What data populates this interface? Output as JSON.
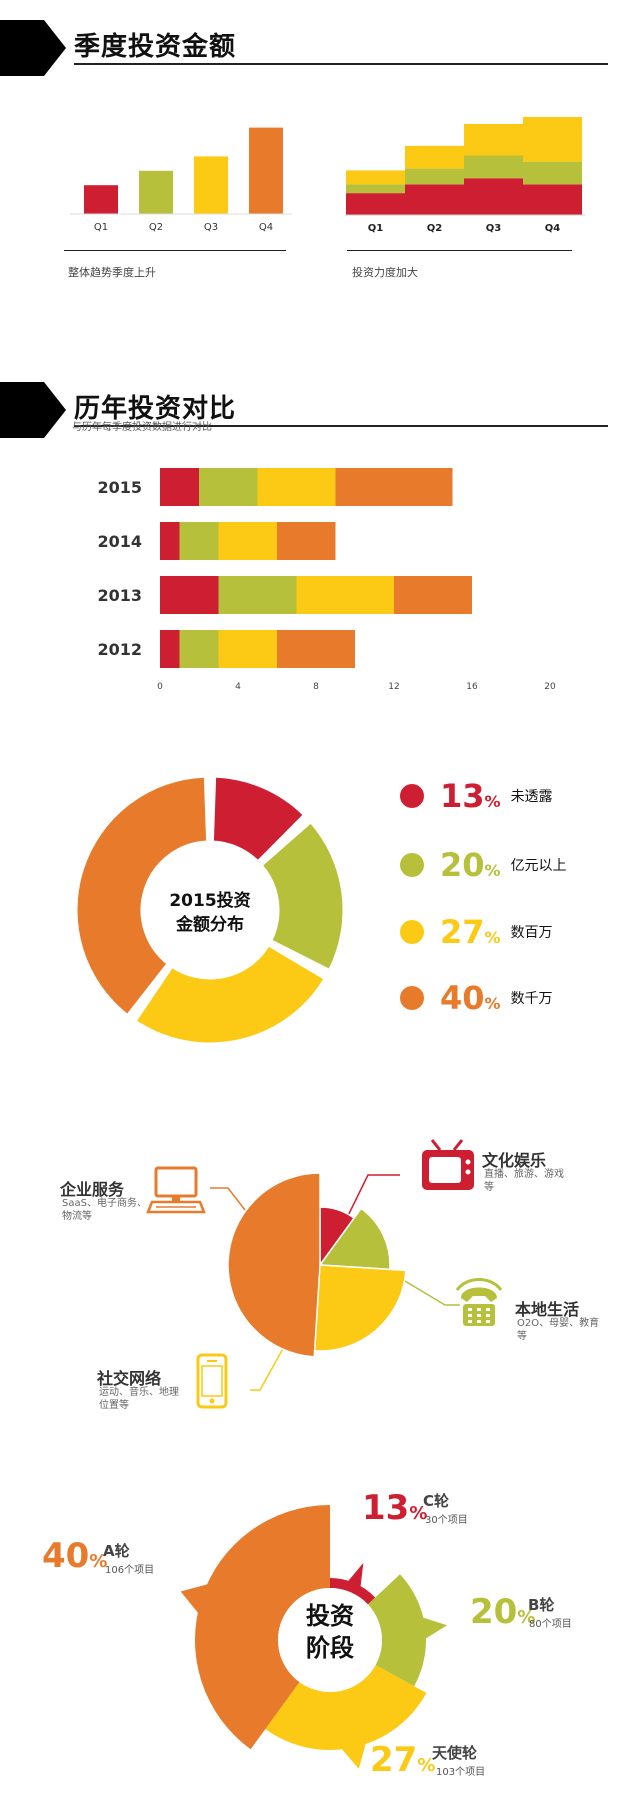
{
  "colors": {
    "red": "#CE1F32",
    "olive": "#B6C03A",
    "yellow": "#FCC915",
    "orange": "#E87A2C",
    "black": "#000000"
  },
  "section1": {
    "title": "季度投资金额",
    "caption_left": "整体趋势季度上升",
    "caption_right": "投资力度加大"
  },
  "section2": {
    "title": "历年投资对比",
    "subtitle": "与历年每季度投资数据进行对比"
  },
  "donut": {
    "center_line1": "2015投资",
    "center_line2": "金额分布",
    "legend": [
      {
        "value": "13",
        "unit": "%",
        "label": "未透露",
        "color": "#CE1F32"
      },
      {
        "value": "20",
        "unit": "%",
        "label": "亿元以上",
        "color": "#B6C03A"
      },
      {
        "value": "27",
        "unit": "%",
        "label": "数百万",
        "color": "#FCC915"
      },
      {
        "value": "40",
        "unit": "%",
        "label": "数千万",
        "color": "#E87A2C"
      }
    ]
  },
  "categories": [
    {
      "title": "文化娱乐",
      "desc": "直播、旅游、游戏等",
      "icon": "tv-icon",
      "color": "#CE1F32"
    },
    {
      "title": "本地生活",
      "desc": "O2O、母婴、教育等",
      "icon": "phone-icon",
      "color": "#B6C03A"
    },
    {
      "title": "社交网络",
      "desc": "运动、音乐、地理位置等",
      "icon": "smartphone-icon",
      "color": "#FCC915"
    },
    {
      "title": "企业服务",
      "desc": "SaaS、电子商务、物流等",
      "icon": "computer-icon",
      "color": "#E87A2C"
    }
  ],
  "stages": {
    "center_line1": "投资",
    "center_line2": "阶段",
    "items": [
      {
        "pct": "13",
        "unit": "%",
        "name": "C轮",
        "count": "30个项目",
        "color": "#CE1F32"
      },
      {
        "pct": "20",
        "unit": "%",
        "name": "B轮",
        "count": "80个项目",
        "color": "#B6C03A"
      },
      {
        "pct": "27",
        "unit": "%",
        "name": "天使轮",
        "count": "103个项目",
        "color": "#FCC915"
      },
      {
        "pct": "40",
        "unit": "%",
        "name": "A轮",
        "count": "106个项目",
        "color": "#E87A2C"
      }
    ]
  },
  "chart_data": [
    {
      "type": "bar",
      "categories": [
        "Q1",
        "Q2",
        "Q3",
        "Q4"
      ],
      "values": [
        3,
        4.5,
        6,
        9
      ],
      "ylim": [
        0,
        10
      ],
      "grid": false,
      "colors": [
        "#CE1F32",
        "#B6C03A",
        "#FCC915",
        "#E87A2C"
      ]
    },
    {
      "type": "bar",
      "stacked": true,
      "categories": [
        "Q1",
        "Q2",
        "Q3",
        "Q4"
      ],
      "series": [
        {
          "values": [
            2.5,
            3.5,
            4.2,
            3.5
          ],
          "color": "#CE1F32"
        },
        {
          "values": [
            1,
            1.8,
            2.6,
            2.6
          ],
          "color": "#B6C03A"
        },
        {
          "values": [
            1.6,
            2.6,
            3.6,
            5.1
          ],
          "color": "#FCC915"
        }
      ],
      "ylim": [
        0,
        12
      ],
      "grid": false
    },
    {
      "type": "bar",
      "orientation": "horizontal",
      "stacked": true,
      "categories": [
        "2015",
        "2014",
        "2013",
        "2012"
      ],
      "series": [
        {
          "values": [
            2,
            1,
            3,
            1
          ],
          "color": "#CE1F32"
        },
        {
          "values": [
            3,
            2,
            4,
            2
          ],
          "color": "#B6C03A"
        },
        {
          "values": [
            4,
            3,
            5,
            3
          ],
          "color": "#FCC915"
        },
        {
          "values": [
            6,
            3,
            4,
            4
          ],
          "color": "#E87A2C"
        }
      ],
      "xticks": [
        0,
        4,
        8,
        12,
        16,
        20
      ],
      "xlim": [
        0,
        20
      ],
      "grid": false
    },
    {
      "type": "pie",
      "donut": true,
      "title": "2015投资金额分布",
      "labels": [
        "未透露",
        "亿元以上",
        "数百万",
        "数千万"
      ],
      "values": [
        13,
        20,
        27,
        40
      ]
    },
    {
      "type": "pie",
      "labels": [
        "文化娱乐",
        "本地生活",
        "社交网络",
        "企业服务"
      ],
      "values": [
        10,
        16,
        25,
        49
      ]
    },
    {
      "type": "pie",
      "donut": true,
      "title": "投资阶段",
      "labels": [
        "C轮",
        "B轮",
        "天使轮",
        "A轮"
      ],
      "values": [
        13,
        20,
        27,
        40
      ],
      "counts": [
        30,
        80,
        103,
        106
      ]
    }
  ]
}
